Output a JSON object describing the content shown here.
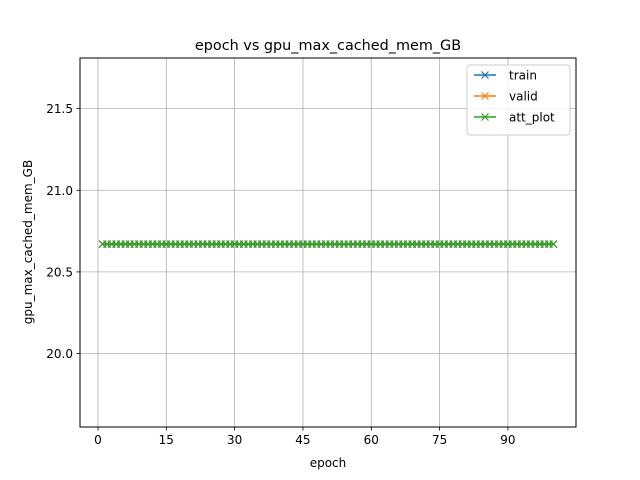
{
  "chart_data": {
    "type": "line",
    "title": "epoch vs gpu_max_cached_mem_GB",
    "xlabel": "epoch",
    "ylabel": "gpu_max_cached_mem_GB",
    "xlim": [
      -3.95,
      104.95
    ],
    "ylim": [
      19.55,
      21.81
    ],
    "x_ticks": [
      0,
      15,
      30,
      45,
      60,
      75,
      90
    ],
    "y_ticks": [
      20.0,
      20.5,
      21.0,
      21.5
    ],
    "grid": true,
    "legend_position": "top-right",
    "x": [
      1,
      2,
      3,
      4,
      5,
      6,
      7,
      8,
      9,
      10,
      11,
      12,
      13,
      14,
      15,
      16,
      17,
      18,
      19,
      20,
      21,
      22,
      23,
      24,
      25,
      26,
      27,
      28,
      29,
      30,
      31,
      32,
      33,
      34,
      35,
      36,
      37,
      38,
      39,
      40,
      41,
      42,
      43,
      44,
      45,
      46,
      47,
      48,
      49,
      50,
      51,
      52,
      53,
      54,
      55,
      56,
      57,
      58,
      59,
      60,
      61,
      62,
      63,
      64,
      65,
      66,
      67,
      68,
      69,
      70,
      71,
      72,
      73,
      74,
      75,
      76,
      77,
      78,
      79,
      80,
      81,
      82,
      83,
      84,
      85,
      86,
      87,
      88,
      89,
      90,
      91,
      92,
      93,
      94,
      95,
      96,
      97,
      98,
      99,
      100
    ],
    "series": [
      {
        "name": "train",
        "color": "#1f77b4",
        "marker": "x",
        "constant": 20.67
      },
      {
        "name": "valid",
        "color": "#ff7f0e",
        "marker": "x",
        "constant": 20.67
      },
      {
        "name": "att_plot",
        "color": "#2ca02c",
        "marker": "x",
        "constant": 20.67
      }
    ]
  }
}
